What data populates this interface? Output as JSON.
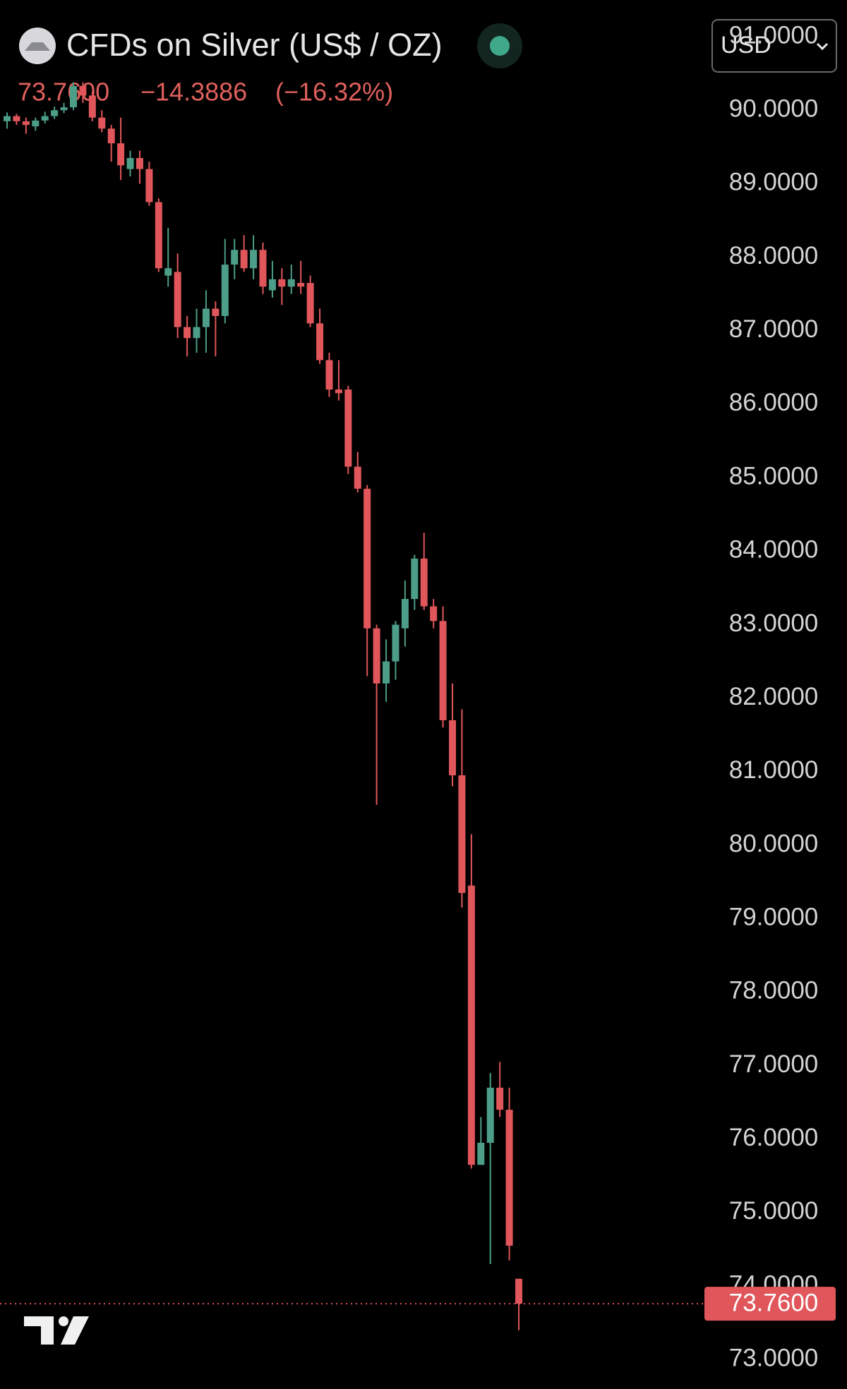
{
  "header": {
    "title": "CFDs on Silver (US$ / OZ)",
    "change": "−14.3886",
    "change_percent": "(−16.32%)",
    "currency": "USD"
  },
  "chart_data": {
    "type": "candlestick",
    "up_color": "#4c9e88",
    "down_color": "#e0565b",
    "last_price": {
      "value": 73.76,
      "label": "73.7600"
    },
    "ylim": [
      72.6,
      91.5
    ],
    "yticks": [
      {
        "value": 91,
        "label": "91.0000"
      },
      {
        "value": 90,
        "label": "90.0000"
      },
      {
        "value": 89,
        "label": "89.0000"
      },
      {
        "value": 88,
        "label": "88.0000"
      },
      {
        "value": 87,
        "label": "87.0000"
      },
      {
        "value": 86,
        "label": "86.0000"
      },
      {
        "value": 85,
        "label": "85.0000"
      },
      {
        "value": 84,
        "label": "84.0000"
      },
      {
        "value": 83,
        "label": "83.0000"
      },
      {
        "value": 82,
        "label": "82.0000"
      },
      {
        "value": 81,
        "label": "81.0000"
      },
      {
        "value": 80,
        "label": "80.0000"
      },
      {
        "value": 79,
        "label": "79.0000"
      },
      {
        "value": 78,
        "label": "78.0000"
      },
      {
        "value": 77,
        "label": "77.0000"
      },
      {
        "value": 76,
        "label": "76.0000"
      },
      {
        "value": 75,
        "label": "75.0000"
      },
      {
        "value": 74,
        "label": "74.0000"
      },
      {
        "value": 73,
        "label": "73.0000"
      }
    ],
    "open": [
      89.85,
      89.92,
      89.85,
      89.78,
      89.86,
      89.92,
      90.0,
      90.04,
      90.33,
      90.2,
      89.9,
      89.75,
      89.55,
      89.2,
      89.35,
      89.2,
      88.75,
      87.75,
      87.8,
      87.05,
      86.9,
      87.05,
      87.3,
      87.2,
      87.9,
      88.1,
      87.85,
      88.1,
      87.55,
      87.7,
      87.6,
      87.65,
      87.65,
      87.1,
      86.6,
      86.2,
      86.2,
      85.15,
      84.85,
      82.95,
      82.2,
      82.5,
      82.95,
      83.35,
      83.9,
      83.25,
      83.05,
      81.7,
      80.95,
      79.45,
      75.65,
      75.95,
      76.7,
      76.4,
      74.1
    ],
    "high": [
      89.97,
      89.95,
      89.9,
      89.9,
      89.98,
      90.05,
      90.1,
      90.38,
      90.38,
      90.25,
      90.0,
      89.8,
      89.9,
      89.45,
      89.45,
      89.3,
      88.8,
      88.4,
      88.05,
      87.2,
      87.3,
      87.55,
      87.4,
      88.25,
      88.25,
      88.3,
      88.3,
      88.2,
      87.95,
      87.85,
      87.9,
      87.95,
      87.75,
      87.3,
      86.7,
      86.6,
      86.25,
      85.35,
      84.9,
      83.0,
      82.8,
      83.05,
      83.6,
      83.95,
      84.25,
      83.35,
      83.25,
      82.2,
      81.85,
      80.15,
      76.3,
      76.9,
      77.05,
      76.7,
      74.1
    ],
    "low": [
      89.75,
      89.8,
      89.68,
      89.72,
      89.82,
      89.88,
      89.96,
      90.0,
      90.1,
      89.85,
      89.7,
      89.3,
      89.05,
      89.1,
      89.0,
      88.7,
      87.8,
      87.6,
      86.9,
      86.65,
      86.7,
      86.7,
      86.65,
      87.1,
      87.7,
      87.8,
      87.7,
      87.5,
      87.45,
      87.35,
      87.5,
      87.5,
      87.05,
      86.55,
      86.1,
      86.05,
      85.05,
      84.8,
      82.3,
      80.55,
      81.95,
      82.25,
      82.7,
      83.2,
      83.2,
      82.95,
      81.6,
      80.8,
      79.15,
      75.6,
      75.65,
      74.3,
      76.3,
      74.35,
      73.4
    ],
    "close": [
      89.92,
      89.85,
      89.8,
      89.86,
      89.92,
      90.0,
      90.04,
      90.33,
      90.2,
      89.9,
      89.75,
      89.55,
      89.25,
      89.35,
      89.2,
      88.75,
      87.85,
      87.85,
      87.05,
      86.9,
      87.05,
      87.3,
      87.2,
      87.9,
      88.1,
      87.85,
      88.1,
      87.6,
      87.7,
      87.6,
      87.7,
      87.6,
      87.1,
      86.6,
      86.2,
      86.15,
      85.15,
      84.85,
      82.95,
      82.2,
      82.5,
      83.0,
      83.35,
      83.9,
      83.25,
      83.05,
      81.7,
      80.95,
      79.35,
      75.65,
      75.95,
      76.7,
      76.4,
      74.55,
      73.76
    ]
  }
}
